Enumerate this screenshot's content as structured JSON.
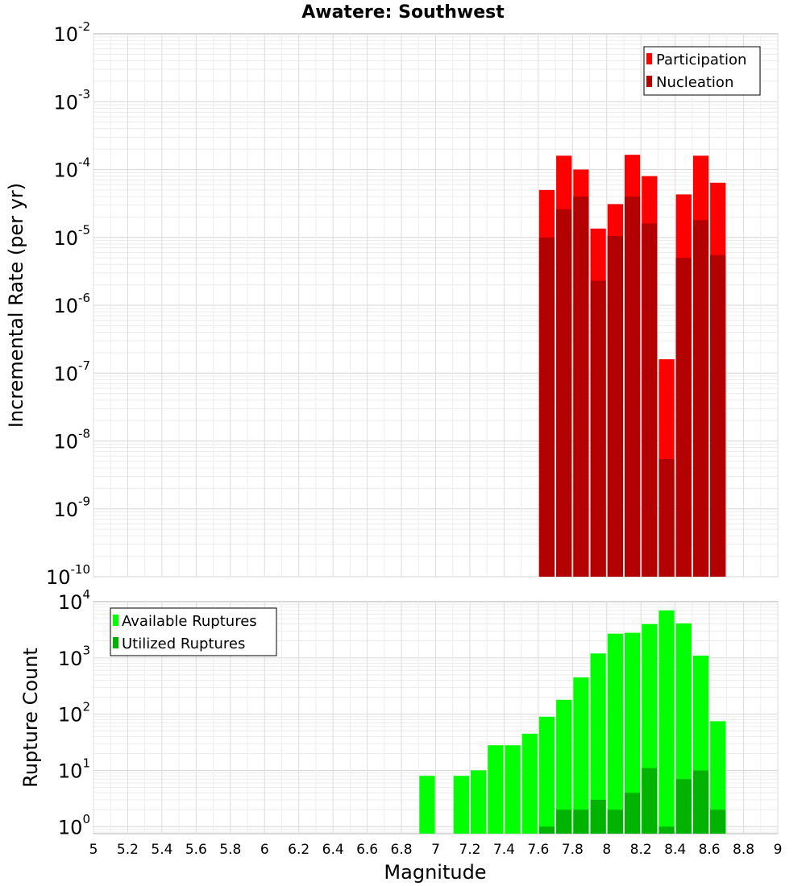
{
  "chart_data": [
    {
      "type": "bar",
      "title": "Awatere: Southwest",
      "xlabel": "",
      "ylabel": "Incremental Rate (per yr)",
      "yscale": "log",
      "ylim": [
        1e-10,
        0.01
      ],
      "xlim": [
        5,
        9
      ],
      "y_tick_labels": [
        {
          "base": "10",
          "exp": "-10"
        },
        {
          "base": "10",
          "exp": "-9"
        },
        {
          "base": "10",
          "exp": "-8"
        },
        {
          "base": "10",
          "exp": "-7"
        },
        {
          "base": "10",
          "exp": "-6"
        },
        {
          "base": "10",
          "exp": "-5"
        },
        {
          "base": "10",
          "exp": "-4"
        },
        {
          "base": "10",
          "exp": "-3"
        },
        {
          "base": "10",
          "exp": "-2"
        }
      ],
      "legend": {
        "position": "top-right",
        "entries": [
          "Participation",
          "Nucleation"
        ]
      },
      "x": [
        7.65,
        7.75,
        7.85,
        7.95,
        8.05,
        8.15,
        8.25,
        8.35,
        8.45,
        8.55,
        8.65
      ],
      "series": [
        {
          "name": "Participation",
          "color": "#ff0000",
          "values": [
            5e-05,
            0.00016,
            0.0001,
            1.35e-05,
            3.1e-05,
            0.000165,
            8e-05,
            1.6e-07,
            4.3e-05,
            0.00016,
            6.4e-05
          ]
        },
        {
          "name": "Nucleation",
          "color": "#b30000",
          "values": [
            1e-05,
            2.6e-05,
            4e-05,
            2.3e-06,
            1.05e-05,
            4e-05,
            1.6e-05,
            5.4e-09,
            5e-06,
            1.8e-05,
            5.5e-06
          ]
        }
      ]
    },
    {
      "type": "bar",
      "title": "",
      "xlabel": "Magnitude",
      "ylabel": "Rupture Count",
      "yscale": "log",
      "ylim": [
        0.75,
        10000
      ],
      "xlim": [
        5,
        9
      ],
      "x_tick_labels": [
        "5",
        "5.2",
        "5.4",
        "5.6",
        "5.8",
        "6",
        "6.2",
        "6.4",
        "6.6",
        "6.8",
        "7",
        "7.2",
        "7.4",
        "7.6",
        "7.8",
        "8",
        "8.2",
        "8.4",
        "8.6",
        "8.8",
        "9"
      ],
      "y_tick_labels": [
        {
          "base": "10",
          "exp": "0"
        },
        {
          "base": "10",
          "exp": "1"
        },
        {
          "base": "10",
          "exp": "2"
        },
        {
          "base": "10",
          "exp": "3"
        },
        {
          "base": "10",
          "exp": "4"
        }
      ],
      "legend": {
        "position": "top-left",
        "entries": [
          "Available Ruptures",
          "Utilized Ruptures"
        ]
      },
      "x": [
        6.95,
        7.15,
        7.25,
        7.35,
        7.45,
        7.55,
        7.65,
        7.75,
        7.85,
        7.95,
        8.05,
        8.15,
        8.25,
        8.35,
        8.45,
        8.55,
        8.65
      ],
      "series": [
        {
          "name": "Available Ruptures",
          "color": "#00ff00",
          "values": [
            8,
            8,
            10,
            28,
            28,
            45,
            90,
            180,
            450,
            1200,
            2700,
            2800,
            4000,
            7000,
            4100,
            1100,
            75
          ]
        },
        {
          "name": "Utilized Ruptures",
          "color": "#00b300",
          "values": [
            null,
            null,
            null,
            null,
            null,
            null,
            1,
            2,
            2,
            3,
            2,
            4,
            11,
            1,
            7,
            10,
            2
          ]
        }
      ]
    }
  ]
}
